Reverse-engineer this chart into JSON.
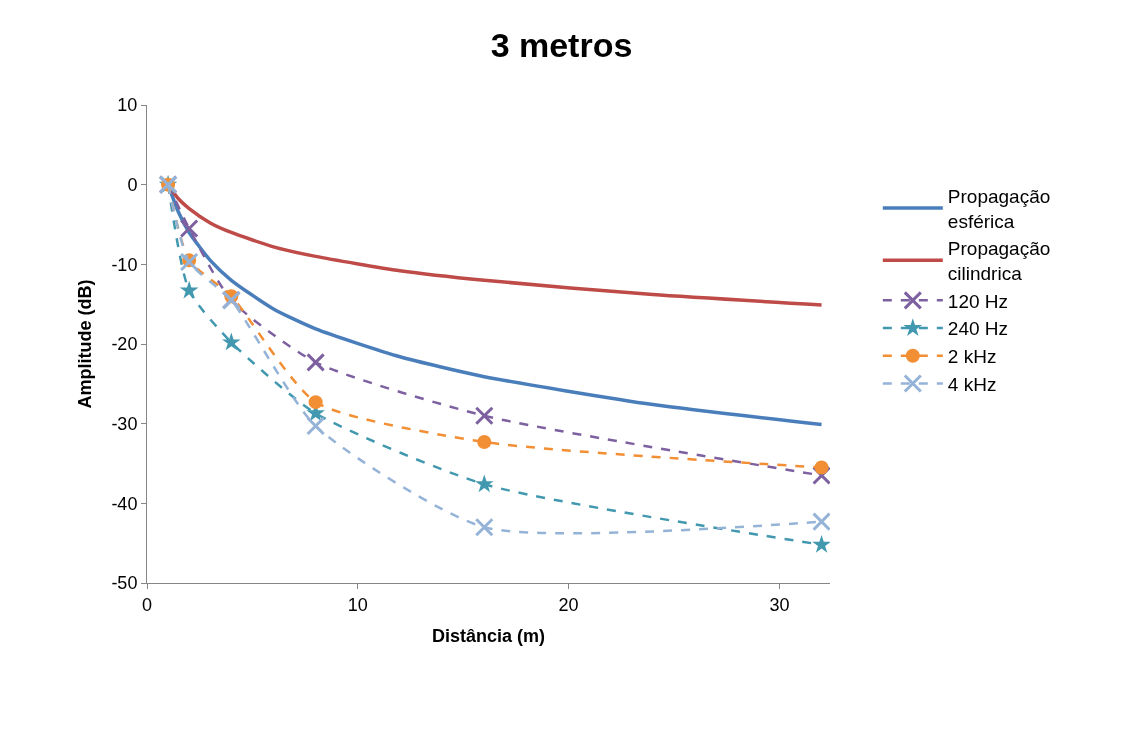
{
  "chart_data": {
    "type": "line",
    "title": "3 metros",
    "xlabel": "Distância (m)",
    "ylabel": "Amplitude (dB)",
    "xlim": [
      0,
      32.4
    ],
    "xticks": [
      0,
      10,
      20,
      30
    ],
    "ylim": [
      -50,
      10
    ],
    "yticks": [
      -50,
      -40,
      -30,
      -20,
      -10,
      0,
      10
    ],
    "grid": false,
    "legend": "right",
    "series": [
      {
        "name": "Propagação esférica",
        "color": "#4a7ebb",
        "line_style": "solid",
        "marker": "none",
        "x": [
          1,
          1.5,
          2,
          3,
          4,
          6,
          8,
          12,
          16,
          24,
          32
        ],
        "values": [
          0,
          -3.5,
          -6,
          -9.5,
          -12,
          -15.6,
          -18.1,
          -21.6,
          -24.1,
          -27.6,
          -30.1
        ]
      },
      {
        "name": "Propagação cilindrica",
        "color": "#be4b48",
        "line_style": "solid",
        "marker": "none",
        "x": [
          1,
          1.5,
          2,
          3,
          4,
          6,
          8,
          12,
          16,
          24,
          32
        ],
        "values": [
          0,
          -1.8,
          -3,
          -4.8,
          -6,
          -7.8,
          -9,
          -10.8,
          -12,
          -13.8,
          -15.1
        ]
      },
      {
        "name": "120 Hz",
        "color": "#7d60a0",
        "line_style": "dashed",
        "marker": "cross",
        "x": [
          1,
          2,
          4,
          8,
          16,
          32
        ],
        "values": [
          0,
          -5.5,
          -14.5,
          -22.3,
          -29,
          -36.5
        ]
      },
      {
        "name": "240 Hz",
        "color": "#4198af",
        "line_style": "dashed",
        "marker": "star",
        "x": [
          1,
          2,
          4,
          8,
          16,
          32
        ],
        "values": [
          0,
          -13.3,
          -19.8,
          -28.7,
          -37.6,
          -45.2
        ]
      },
      {
        "name": "2 kHz",
        "color": "#f28e34",
        "line_style": "dashed",
        "marker": "circle",
        "x": [
          1,
          2,
          4,
          8,
          16,
          32
        ],
        "values": [
          0,
          -9.5,
          -14,
          -27.3,
          -32.3,
          -35.5
        ]
      },
      {
        "name": "4 kHz",
        "color": "#95b3d7",
        "line_style": "dashed",
        "marker": "cross",
        "x": [
          1,
          2,
          4,
          8,
          16,
          32
        ],
        "values": [
          0,
          -9.7,
          -14.5,
          -30.3,
          -43,
          -42.3
        ]
      }
    ]
  }
}
